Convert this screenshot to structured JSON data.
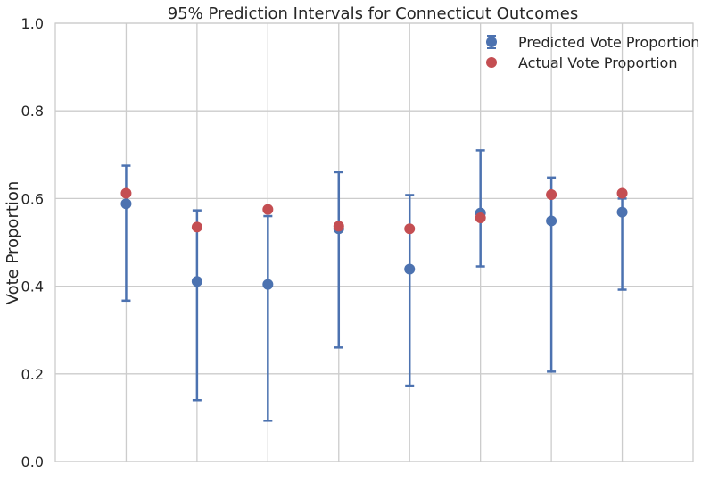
{
  "chart_data": {
    "type": "scatter",
    "title": "95% Prediction Intervals for Connecticut Outcomes",
    "xlabel": "",
    "ylabel": "Vote Proportion",
    "ylim": [
      0.0,
      1.0
    ],
    "yticks": [
      "0.0",
      "0.2",
      "0.4",
      "0.6",
      "0.8",
      "1.0"
    ],
    "x": [
      1,
      2,
      3,
      4,
      5,
      6,
      7,
      8
    ],
    "xlim": [
      0,
      9
    ],
    "grid": true,
    "legend_position": "top-right",
    "series": [
      {
        "name": "Predicted Vote Proportion",
        "color": "#4c72b0",
        "values": [
          0.588,
          0.411,
          0.404,
          0.531,
          0.439,
          0.567,
          0.549,
          0.569
        ],
        "lower": [
          0.367,
          0.14,
          0.093,
          0.26,
          0.173,
          0.445,
          0.205,
          0.392
        ],
        "upper": [
          0.675,
          0.573,
          0.56,
          0.66,
          0.608,
          0.71,
          0.648,
          0.6
        ]
      },
      {
        "name": "Actual Vote Proportion",
        "color": "#c44e52",
        "values": [
          0.612,
          0.535,
          0.575,
          0.537,
          0.531,
          0.556,
          0.609,
          0.612
        ]
      }
    ]
  }
}
